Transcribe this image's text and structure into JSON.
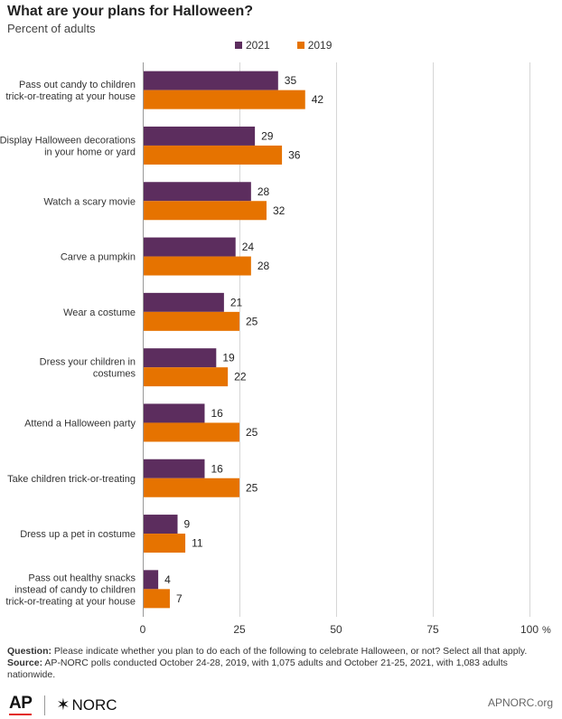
{
  "chart_data": {
    "type": "bar",
    "orientation": "horizontal",
    "title": "What are your plans for Halloween?",
    "subtitle": "Percent of adults",
    "categories": [
      [
        "Pass out candy to children",
        "trick-or-treating at your house"
      ],
      [
        "Display Halloween decorations",
        "in your home or yard"
      ],
      [
        "Watch a scary movie"
      ],
      [
        "Carve a pumpkin"
      ],
      [
        "Wear a costume"
      ],
      [
        "Dress your children in",
        "costumes"
      ],
      [
        "Attend a Halloween party"
      ],
      [
        "Take children trick-or-treating"
      ],
      [
        "Dress up a pet in costume"
      ],
      [
        "Pass out healthy snacks",
        "instead of candy to children",
        "trick-or-treating at your house"
      ]
    ],
    "series": [
      {
        "name": "2021",
        "color": "#5c2d5e",
        "values": [
          35,
          29,
          28,
          24,
          21,
          19,
          16,
          16,
          9,
          4
        ]
      },
      {
        "name": "2019",
        "color": "#e67300",
        "values": [
          42,
          36,
          32,
          28,
          25,
          22,
          25,
          25,
          11,
          7
        ]
      }
    ],
    "xlim": [
      0,
      100
    ],
    "xticks": [
      "0",
      "25",
      "50",
      "75",
      "100"
    ],
    "x_unit": "%",
    "grid": true,
    "legend_position": "top"
  },
  "footer": {
    "question_label": "Question:",
    "question_text": " Please indicate whether you plan to do each of the following to celebrate Halloween, or not? Select all that apply.",
    "source_label": "Source:",
    "source_text": " AP-NORC polls conducted October 24-28, 2019, with 1,075 adults and October 21-25, 2021, with 1,083 adults nationwide."
  },
  "branding": {
    "ap": "AP",
    "norc_star": "✶",
    "norc": "NORC",
    "site": "APNORC.org"
  }
}
